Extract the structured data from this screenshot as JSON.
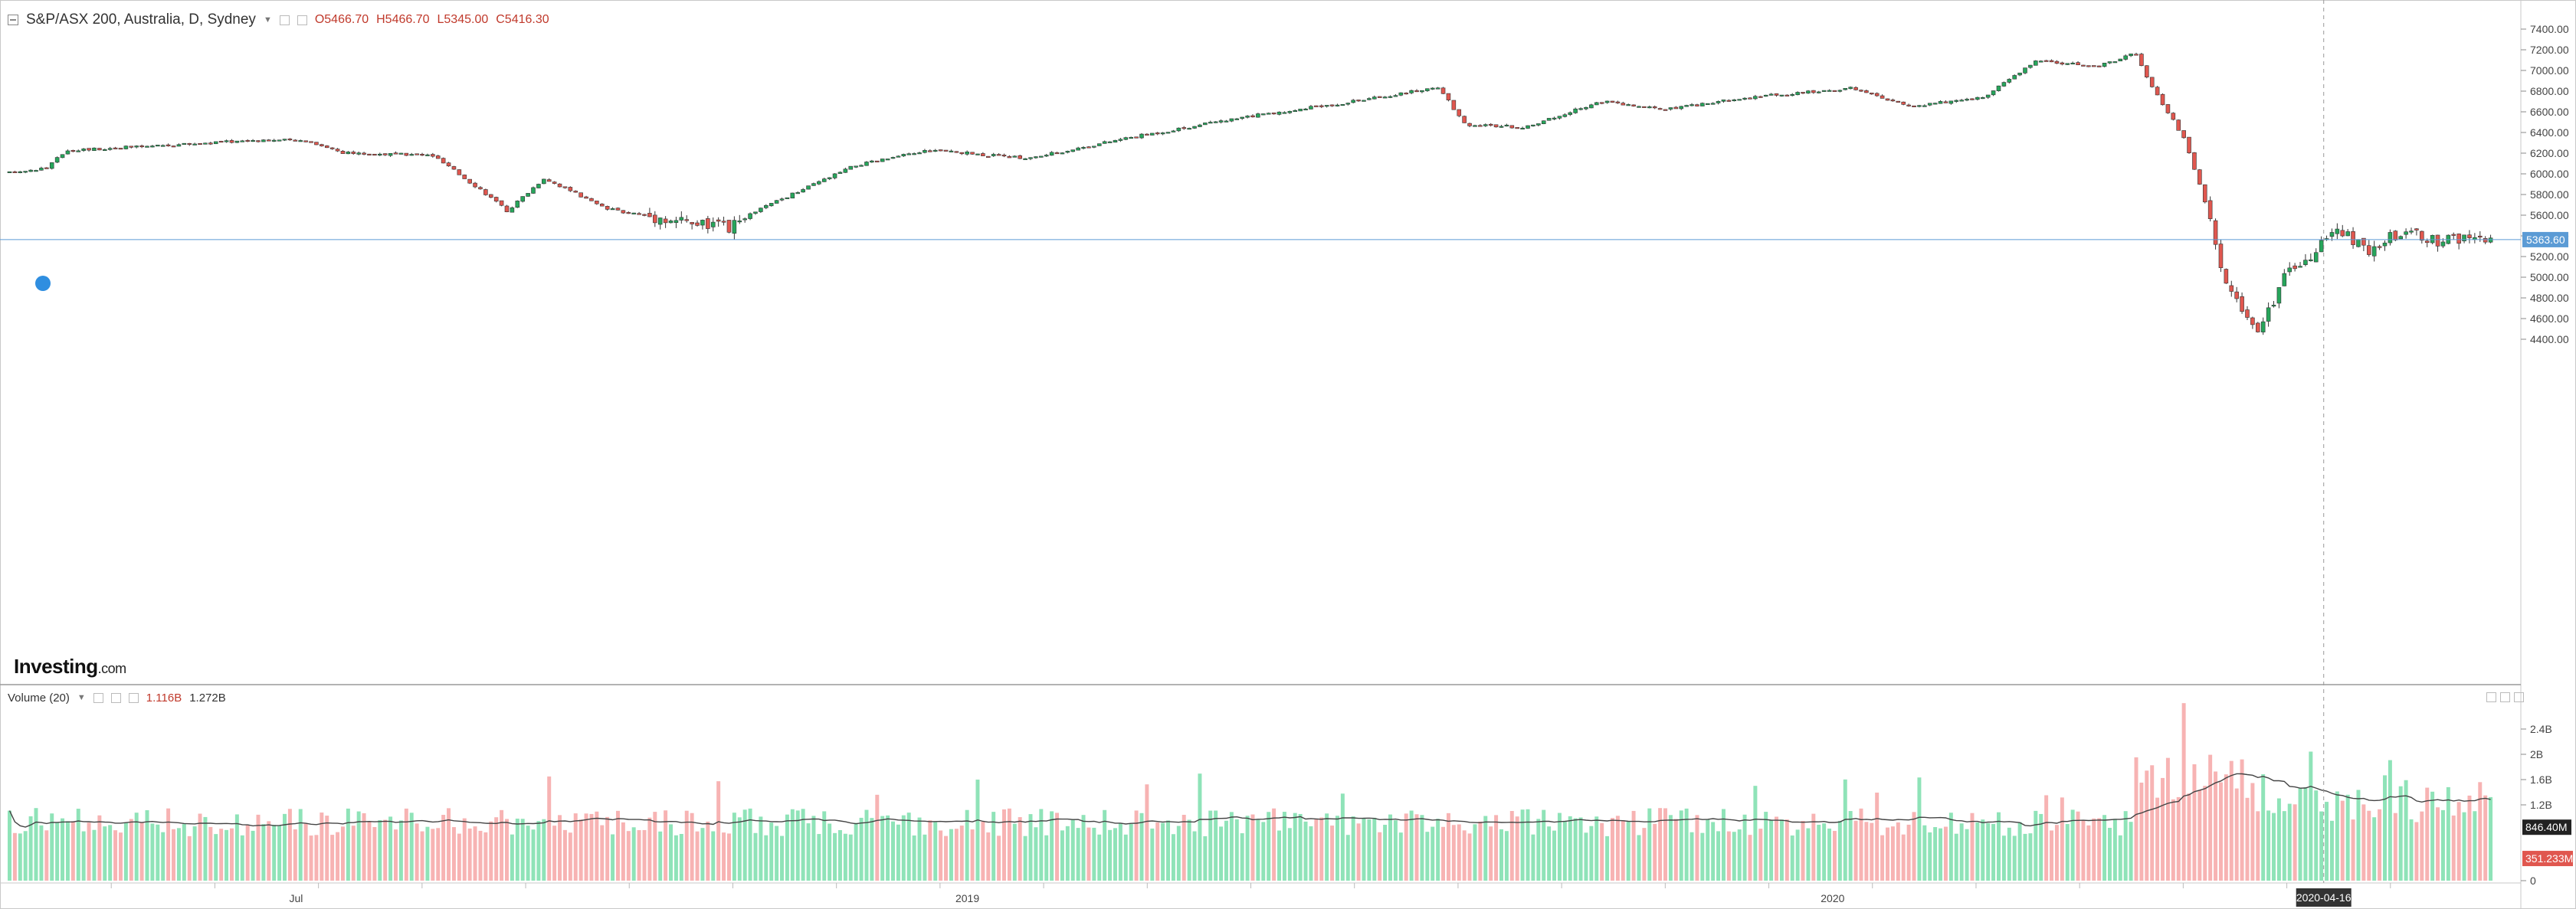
{
  "header": {
    "title": "S&P/ASX 200, Australia, D, Sydney",
    "open": "O5466.70",
    "high": "H5466.70",
    "low": "L5345.00",
    "close": "C5416.30"
  },
  "volume_header": {
    "title": "Volume (20)",
    "value1": "1.116B",
    "value2": "1.272B"
  },
  "logo": {
    "brand": "Investing",
    "suffix": ".com"
  },
  "colors": {
    "up": "#26a65b",
    "down": "#e0574f",
    "up_volume": "#8fe3b8",
    "down_volume": "#f7b3b3",
    "price_line": "#5b9bd5",
    "ma_line": "#444444"
  },
  "chart_data": {
    "type": "candlestick",
    "title": "S&P/ASX 200, Australia, D, Sydney",
    "price_axis": {
      "range": [
        4300,
        7500
      ],
      "ticks": [
        4400,
        4600,
        4800,
        5000,
        5200,
        5400,
        5600,
        5800,
        6000,
        6200,
        6400,
        6600,
        6800,
        7000,
        7200,
        7400
      ]
    },
    "x_ticks": [
      "Jul",
      "2019",
      "2020"
    ],
    "crosshair_date": "2020-04-16",
    "last_price": "5363.60",
    "price_path": [
      {
        "t": 0,
        "p": 6010
      },
      {
        "t": 0.015,
        "p": 6060
      },
      {
        "t": 0.023,
        "p": 6230
      },
      {
        "t": 0.06,
        "p": 6270
      },
      {
        "t": 0.1,
        "p": 6330
      },
      {
        "t": 0.12,
        "p": 6320
      },
      {
        "t": 0.135,
        "p": 6200
      },
      {
        "t": 0.17,
        "p": 6180
      },
      {
        "t": 0.19,
        "p": 5840
      },
      {
        "t": 0.2,
        "p": 5640
      },
      {
        "t": 0.215,
        "p": 5960
      },
      {
        "t": 0.24,
        "p": 5660
      },
      {
        "t": 0.29,
        "p": 5470
      },
      {
        "t": 0.3,
        "p": 5640
      },
      {
        "t": 0.34,
        "p": 6080
      },
      {
        "t": 0.37,
        "p": 6230
      },
      {
        "t": 0.41,
        "p": 6150
      },
      {
        "t": 0.45,
        "p": 6350
      },
      {
        "t": 0.5,
        "p": 6560
      },
      {
        "t": 0.535,
        "p": 6680
      },
      {
        "t": 0.575,
        "p": 6840
      },
      {
        "t": 0.585,
        "p": 6480
      },
      {
        "t": 0.61,
        "p": 6450
      },
      {
        "t": 0.64,
        "p": 6700
      },
      {
        "t": 0.665,
        "p": 6620
      },
      {
        "t": 0.7,
        "p": 6740
      },
      {
        "t": 0.74,
        "p": 6830
      },
      {
        "t": 0.765,
        "p": 6650
      },
      {
        "t": 0.795,
        "p": 6750
      },
      {
        "t": 0.815,
        "p": 7100
      },
      {
        "t": 0.84,
        "p": 7040
      },
      {
        "t": 0.855,
        "p": 7170
      },
      {
        "t": 0.86,
        "p": 6900
      },
      {
        "t": 0.875,
        "p": 6330
      },
      {
        "t": 0.884,
        "p": 5650
      },
      {
        "t": 0.89,
        "p": 5000
      },
      {
        "t": 0.9,
        "p": 4600
      },
      {
        "t": 0.905,
        "p": 4480
      },
      {
        "t": 0.915,
        "p": 5000
      },
      {
        "t": 0.925,
        "p": 5200
      },
      {
        "t": 0.935,
        "p": 5460
      },
      {
        "t": 0.95,
        "p": 5250
      },
      {
        "t": 0.962,
        "p": 5450
      },
      {
        "t": 0.975,
        "p": 5350
      }
    ],
    "volume_axis": {
      "ticks": [
        "2.4B",
        "2B",
        "1.6B",
        "1.2B",
        "0"
      ]
    },
    "volume_markers": {
      "last_ma": "846.40M",
      "last_volume": "351.233M"
    }
  }
}
